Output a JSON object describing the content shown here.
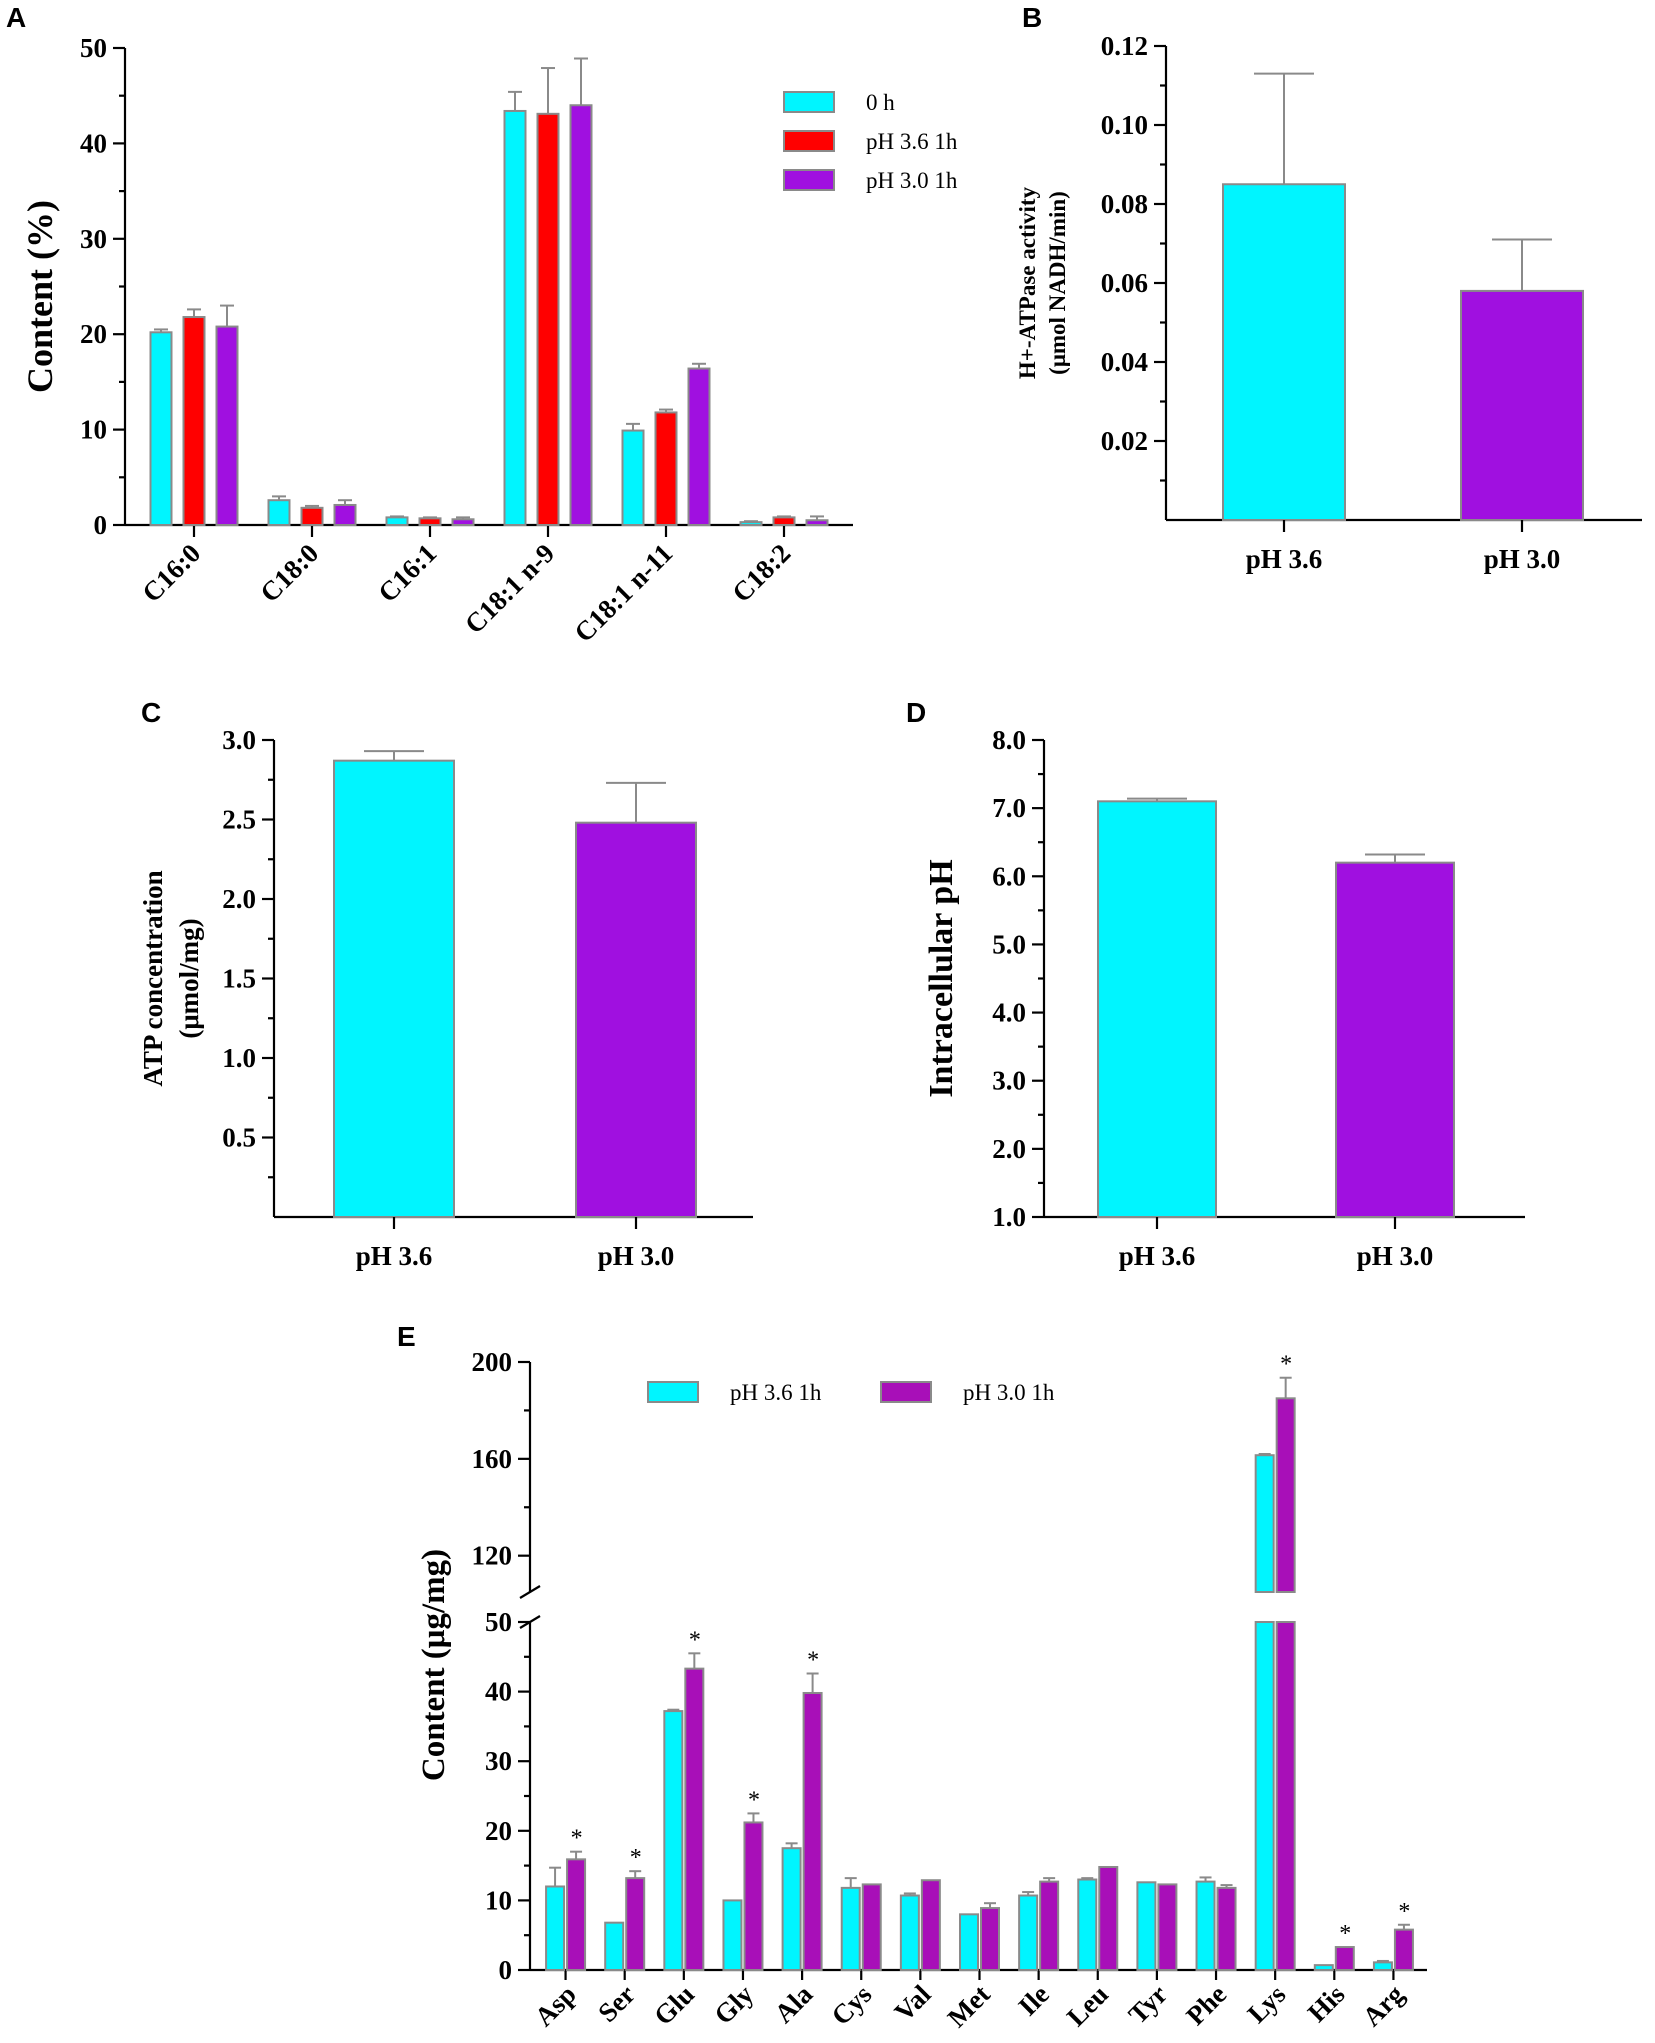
{
  "chart_data": [
    {
      "panel": "A",
      "type": "bar",
      "ylabel": "Content (%)",
      "ylim": [
        0,
        50
      ],
      "yticks": [
        "0",
        "10",
        "20",
        "30",
        "40",
        "50"
      ],
      "categories": [
        "C16:0",
        "C18:0",
        "C16:1",
        "C18:1 n-9",
        "C18:1 n-11",
        "C18:2"
      ],
      "legend_position": "top-right",
      "series": [
        {
          "name": "0 h",
          "color": "#00F5FF",
          "values": [
            20.2,
            2.6,
            0.8,
            43.4,
            9.9,
            0.3
          ],
          "errors": [
            0.3,
            0.4,
            0.1,
            2.0,
            0.7,
            0.1
          ]
        },
        {
          "name": "pH 3.6 1h",
          "color": "#FF0000",
          "values": [
            21.8,
            1.8,
            0.7,
            43.1,
            11.8,
            0.8
          ],
          "errors": [
            0.8,
            0.2,
            0.1,
            4.8,
            0.3,
            0.1
          ]
        },
        {
          "name": "pH 3.0 1h",
          "color": "#A010E0",
          "values": [
            20.8,
            2.1,
            0.6,
            44.0,
            16.4,
            0.5
          ],
          "errors": [
            2.2,
            0.5,
            0.2,
            4.9,
            0.5,
            0.4
          ]
        }
      ]
    },
    {
      "panel": "B",
      "type": "bar",
      "ylabel_line1": "H+-ATPase activity",
      "ylabel_line2": "(μmol NADH/min)",
      "ylim": [
        0,
        0.12
      ],
      "yticks": [
        "0.02",
        "0.04",
        "0.06",
        "0.08",
        "0.10",
        "0.12"
      ],
      "categories": [
        "pH 3.6",
        "pH 3.0"
      ],
      "values": [
        0.085,
        0.058
      ],
      "errors": [
        0.028,
        0.013
      ],
      "colors": [
        "#00F5FF",
        "#A010E0"
      ]
    },
    {
      "panel": "C",
      "type": "bar",
      "ylabel_line1": "ATP concentration",
      "ylabel_line2": "(μmol/mg)",
      "ylim": [
        0,
        3.0
      ],
      "yticks": [
        "0.5",
        "1.0",
        "1.5",
        "2.0",
        "2.5",
        "3.0"
      ],
      "categories": [
        "pH 3.6",
        "pH 3.0"
      ],
      "values": [
        2.87,
        2.48
      ],
      "errors": [
        0.06,
        0.25
      ],
      "colors": [
        "#00F5FF",
        "#A010E0"
      ]
    },
    {
      "panel": "D",
      "type": "bar",
      "ylabel": "Intracellular pH",
      "ylim": [
        1.0,
        8.0
      ],
      "yticks": [
        "1.0",
        "2.0",
        "3.0",
        "4.0",
        "5.0",
        "6.0",
        "7.0",
        "8.0"
      ],
      "categories": [
        "pH 3.6",
        "pH 3.0"
      ],
      "values": [
        7.1,
        6.2
      ],
      "errors": [
        0.04,
        0.12
      ],
      "colors": [
        "#00F5FF",
        "#A010E0"
      ]
    },
    {
      "panel": "E",
      "type": "bar",
      "ylabel": "Content (μg/mg)",
      "ylim_lower": [
        0,
        50
      ],
      "ylim_upper": [
        100,
        200
      ],
      "yticks_lower": [
        "0",
        "10",
        "20",
        "30",
        "40",
        "50"
      ],
      "yticks_upper": [
        "120",
        "160",
        "200"
      ],
      "categories": [
        "Asp",
        "Ser",
        "Glu",
        "Gly",
        "Ala",
        "Cys",
        "Val",
        "Met",
        "Ile",
        "Leu",
        "Tyr",
        "Phe",
        "Lys",
        "His",
        "Arg"
      ],
      "legend_position": "top",
      "significance_marker": "*",
      "series": [
        {
          "name": "pH 3.6 1h",
          "color": "#00F5FF",
          "values": [
            12.0,
            6.8,
            37.2,
            10.0,
            17.5,
            11.8,
            10.7,
            8.0,
            10.7,
            13.0,
            12.6,
            12.7,
            161.5,
            0.7,
            1.1
          ],
          "errors": [
            2.7,
            0.0,
            0.2,
            0.0,
            0.7,
            1.4,
            0.3,
            0.0,
            0.5,
            0.2,
            0.0,
            0.6,
            0.5,
            0.0,
            0.2
          ]
        },
        {
          "name": "pH 3.0 1h",
          "color": "#A80FB8",
          "values": [
            15.9,
            13.2,
            43.3,
            21.2,
            39.8,
            12.3,
            12.9,
            8.9,
            12.7,
            14.8,
            12.3,
            11.8,
            185.0,
            3.3,
            5.8
          ],
          "errors": [
            1.1,
            1.0,
            2.2,
            1.3,
            2.8,
            0.0,
            0.0,
            0.7,
            0.5,
            0.0,
            0.0,
            0.4,
            8.5,
            0.0,
            0.7
          ]
        }
      ],
      "significant": [
        true,
        true,
        true,
        true,
        true,
        false,
        false,
        false,
        false,
        false,
        false,
        false,
        true,
        true,
        true
      ]
    }
  ]
}
